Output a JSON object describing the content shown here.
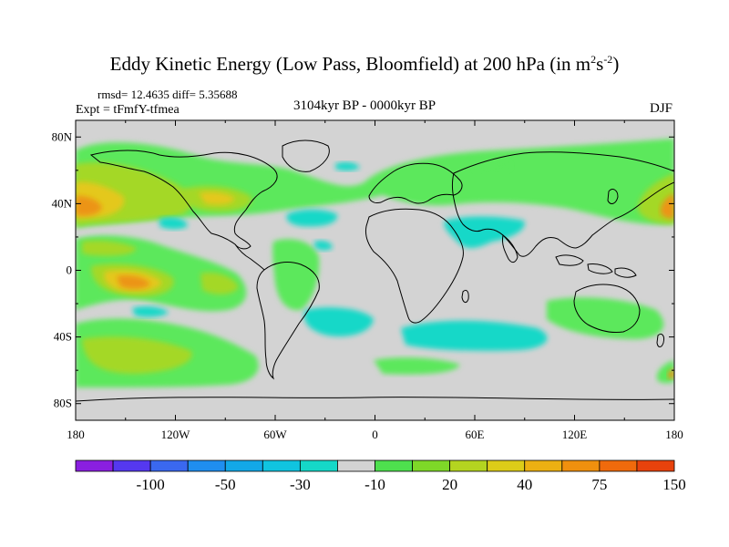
{
  "title": "Eddy Kinetic Energy (Low Pass, Bloomfield) at 200 hPa (in m",
  "units_sup1": "2",
  "units_mid": "s",
  "units_sup2": "-2",
  "units_close": ")",
  "stats": "rmsd= 12.4635  diff= 5.35688",
  "expt": "Expt = tFmfY-tfmea",
  "period": "3104kyr BP - 0000kyr BP",
  "season": "DJF",
  "lat_labels": [
    "80N",
    "40N",
    "0",
    "40S",
    "80S"
  ],
  "lat_values": [
    80,
    40,
    0,
    -40,
    -80
  ],
  "lon_labels": [
    "180",
    "120W",
    "60W",
    "0",
    "60E",
    "120E",
    "180"
  ],
  "lon_values": [
    -180,
    -120,
    -60,
    0,
    60,
    120,
    180
  ],
  "colorbar": {
    "labels": [
      "-100",
      "-50",
      "-30",
      "-10",
      "20",
      "40",
      "75",
      "150"
    ],
    "colors": [
      "#8a1fe0",
      "#5538f0",
      "#3a68f0",
      "#1f8ef0",
      "#12a8e8",
      "#10c4e0",
      "#15d8c8",
      "#d3d3d3",
      "#4ee04e",
      "#7ed828",
      "#b4d420",
      "#dccc18",
      "#ecb012",
      "#f0900e",
      "#f06a0c",
      "#e8420c"
    ]
  },
  "colors": {
    "land_bg": "#d3d3d3",
    "green": "#5ce85c",
    "yellow_green": "#a4d828",
    "yellow": "#e4c81c",
    "orange": "#ec9414",
    "cyan": "#15d8c8"
  }
}
